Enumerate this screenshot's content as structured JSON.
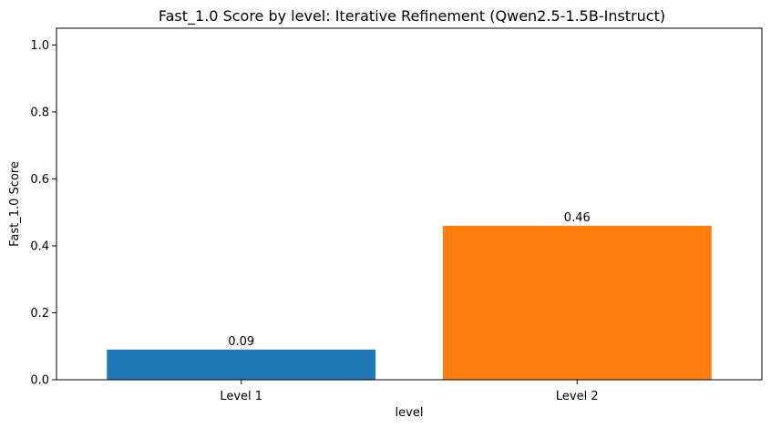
{
  "chart_data": {
    "type": "bar",
    "title": "Fast_1.0 Score by level: Iterative Refinement (Qwen2.5-1.5B-Instruct)",
    "xlabel": "level",
    "ylabel": "Fast_1.0 Score",
    "categories": [
      "Level 1",
      "Level 2"
    ],
    "values": [
      0.09,
      0.46
    ],
    "value_labels": [
      "0.09",
      "0.46"
    ],
    "colors": [
      "#1f77b4",
      "#ff7f0e"
    ],
    "ylim": [
      0,
      1.05
    ],
    "yticks": [
      0.0,
      0.2,
      0.4,
      0.6,
      0.8,
      1.0
    ],
    "ytick_labels": [
      "0.0",
      "0.2",
      "0.4",
      "0.6",
      "0.8",
      "1.0"
    ],
    "grid": false,
    "legend": "none"
  }
}
